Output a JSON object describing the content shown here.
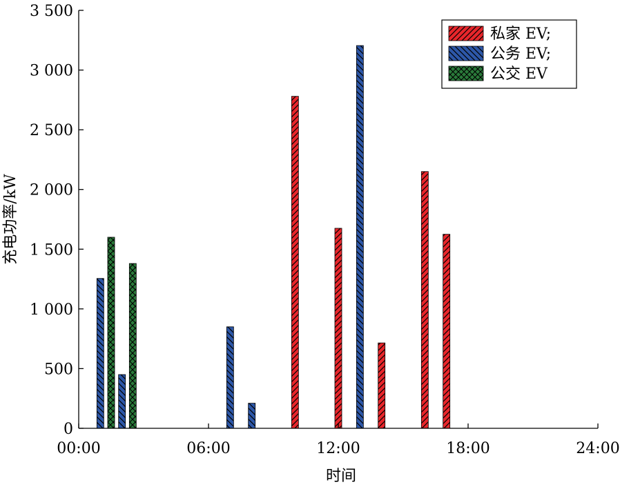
{
  "chart_data": {
    "type": "bar",
    "xlabel": "时间",
    "ylabel": "充电功率/kW",
    "x_unit": "hours",
    "xlim": [
      0,
      24
    ],
    "ylim": [
      0,
      3500
    ],
    "x_ticks": [
      "00:00",
      "06:00",
      "12:00",
      "18:00",
      "24:00"
    ],
    "y_ticks": [
      "0",
      "500",
      "1 000",
      "1 500",
      "2 000",
      "2 500",
      "3 000",
      "3 500"
    ],
    "grid": false,
    "legend_position": "top-right",
    "series": [
      {
        "name": "私家 EV;",
        "color": "#e8262b",
        "pattern": "diagonal-forward",
        "points": [
          {
            "x": 10.0,
            "y": 2780
          },
          {
            "x": 12.0,
            "y": 1675
          },
          {
            "x": 14.0,
            "y": 715
          },
          {
            "x": 16.0,
            "y": 2150
          },
          {
            "x": 17.0,
            "y": 1625
          }
        ]
      },
      {
        "name": "公务 EV;",
        "color": "#2d57a8",
        "pattern": "diagonal-backward",
        "points": [
          {
            "x": 1.0,
            "y": 1255
          },
          {
            "x": 2.0,
            "y": 450
          },
          {
            "x": 7.0,
            "y": 850
          },
          {
            "x": 8.0,
            "y": 210
          },
          {
            "x": 13.0,
            "y": 3205
          }
        ]
      },
      {
        "name": "公交 EV",
        "color": "#2a7a3a",
        "pattern": "crosshatch",
        "points": [
          {
            "x": 1.5,
            "y": 1600
          },
          {
            "x": 2.5,
            "y": 1380
          }
        ]
      }
    ]
  }
}
